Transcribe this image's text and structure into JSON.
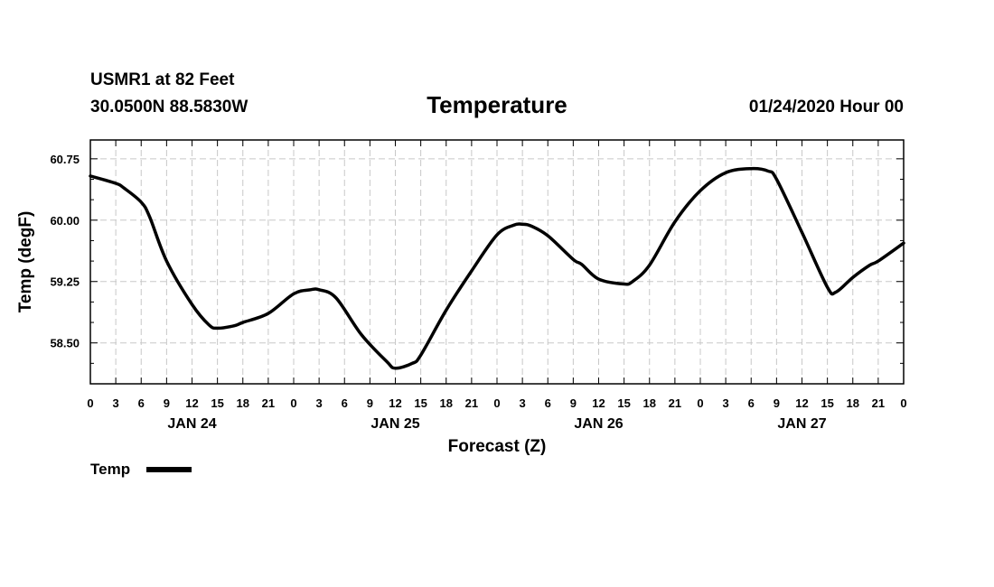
{
  "header": {
    "station": "USMR1 at 82 Feet",
    "coords": "30.0500N 88.5830W",
    "title": "Temperature",
    "run": "01/24/2020 Hour 00"
  },
  "legend": {
    "label": "Temp"
  },
  "chart_data": {
    "type": "line",
    "title": "Temperature",
    "xlabel": "Forecast (Z)",
    "ylabel": "Temp (degF)",
    "xlim": [
      0,
      96
    ],
    "ylim": [
      58.0,
      60.98
    ],
    "grid": true,
    "legend_position": "bottom-left",
    "x_ticks": [
      0,
      3,
      6,
      9,
      12,
      15,
      18,
      21,
      24,
      27,
      30,
      33,
      36,
      39,
      42,
      45,
      48,
      51,
      54,
      57,
      60,
      63,
      66,
      69,
      72,
      75,
      78,
      81,
      84,
      87,
      90,
      93,
      96
    ],
    "x_tick_labels": [
      "0",
      "3",
      "6",
      "9",
      "12",
      "15",
      "18",
      "21",
      "0",
      "3",
      "6",
      "9",
      "12",
      "15",
      "18",
      "21",
      "0",
      "3",
      "6",
      "9",
      "12",
      "15",
      "18",
      "21",
      "0",
      "3",
      "6",
      "9",
      "12",
      "15",
      "18",
      "21",
      "0"
    ],
    "day_labels": [
      {
        "label": "JAN 24",
        "x": 12
      },
      {
        "label": "JAN 25",
        "x": 36
      },
      {
        "label": "JAN 26",
        "x": 60
      },
      {
        "label": "JAN 27",
        "x": 84
      }
    ],
    "y_ticks": [
      58.5,
      59.25,
      60.0,
      60.75
    ],
    "y_tick_labels": [
      "58.50",
      "59.25",
      "60.00",
      "60.75"
    ],
    "y_minor_ticks": [
      58.25,
      58.75,
      59.0,
      59.5,
      59.75,
      60.25,
      60.5
    ],
    "series": [
      {
        "name": "Temp",
        "x": [
          0,
          3,
          4,
          6,
          7,
          9,
          12,
          14,
          15,
          17,
          18,
          21,
          24,
          26,
          27,
          29,
          32,
          35,
          36,
          38,
          39,
          42,
          45,
          48,
          50,
          51,
          52,
          54,
          57,
          58,
          60,
          63,
          64,
          66,
          69,
          72,
          75,
          78,
          80,
          81,
          84,
          87,
          88,
          90,
          92,
          93,
          96
        ],
        "y": [
          60.54,
          60.45,
          60.39,
          60.22,
          60.04,
          59.5,
          58.97,
          58.72,
          58.68,
          58.71,
          58.75,
          58.86,
          59.1,
          59.15,
          59.15,
          59.05,
          58.6,
          58.27,
          58.19,
          58.25,
          58.35,
          58.9,
          59.38,
          59.82,
          59.94,
          59.95,
          59.93,
          59.81,
          59.52,
          59.46,
          59.28,
          59.22,
          59.25,
          59.45,
          59.98,
          60.36,
          60.58,
          60.63,
          60.6,
          60.5,
          59.85,
          59.18,
          59.12,
          59.3,
          59.45,
          59.5,
          59.72
        ]
      }
    ]
  }
}
